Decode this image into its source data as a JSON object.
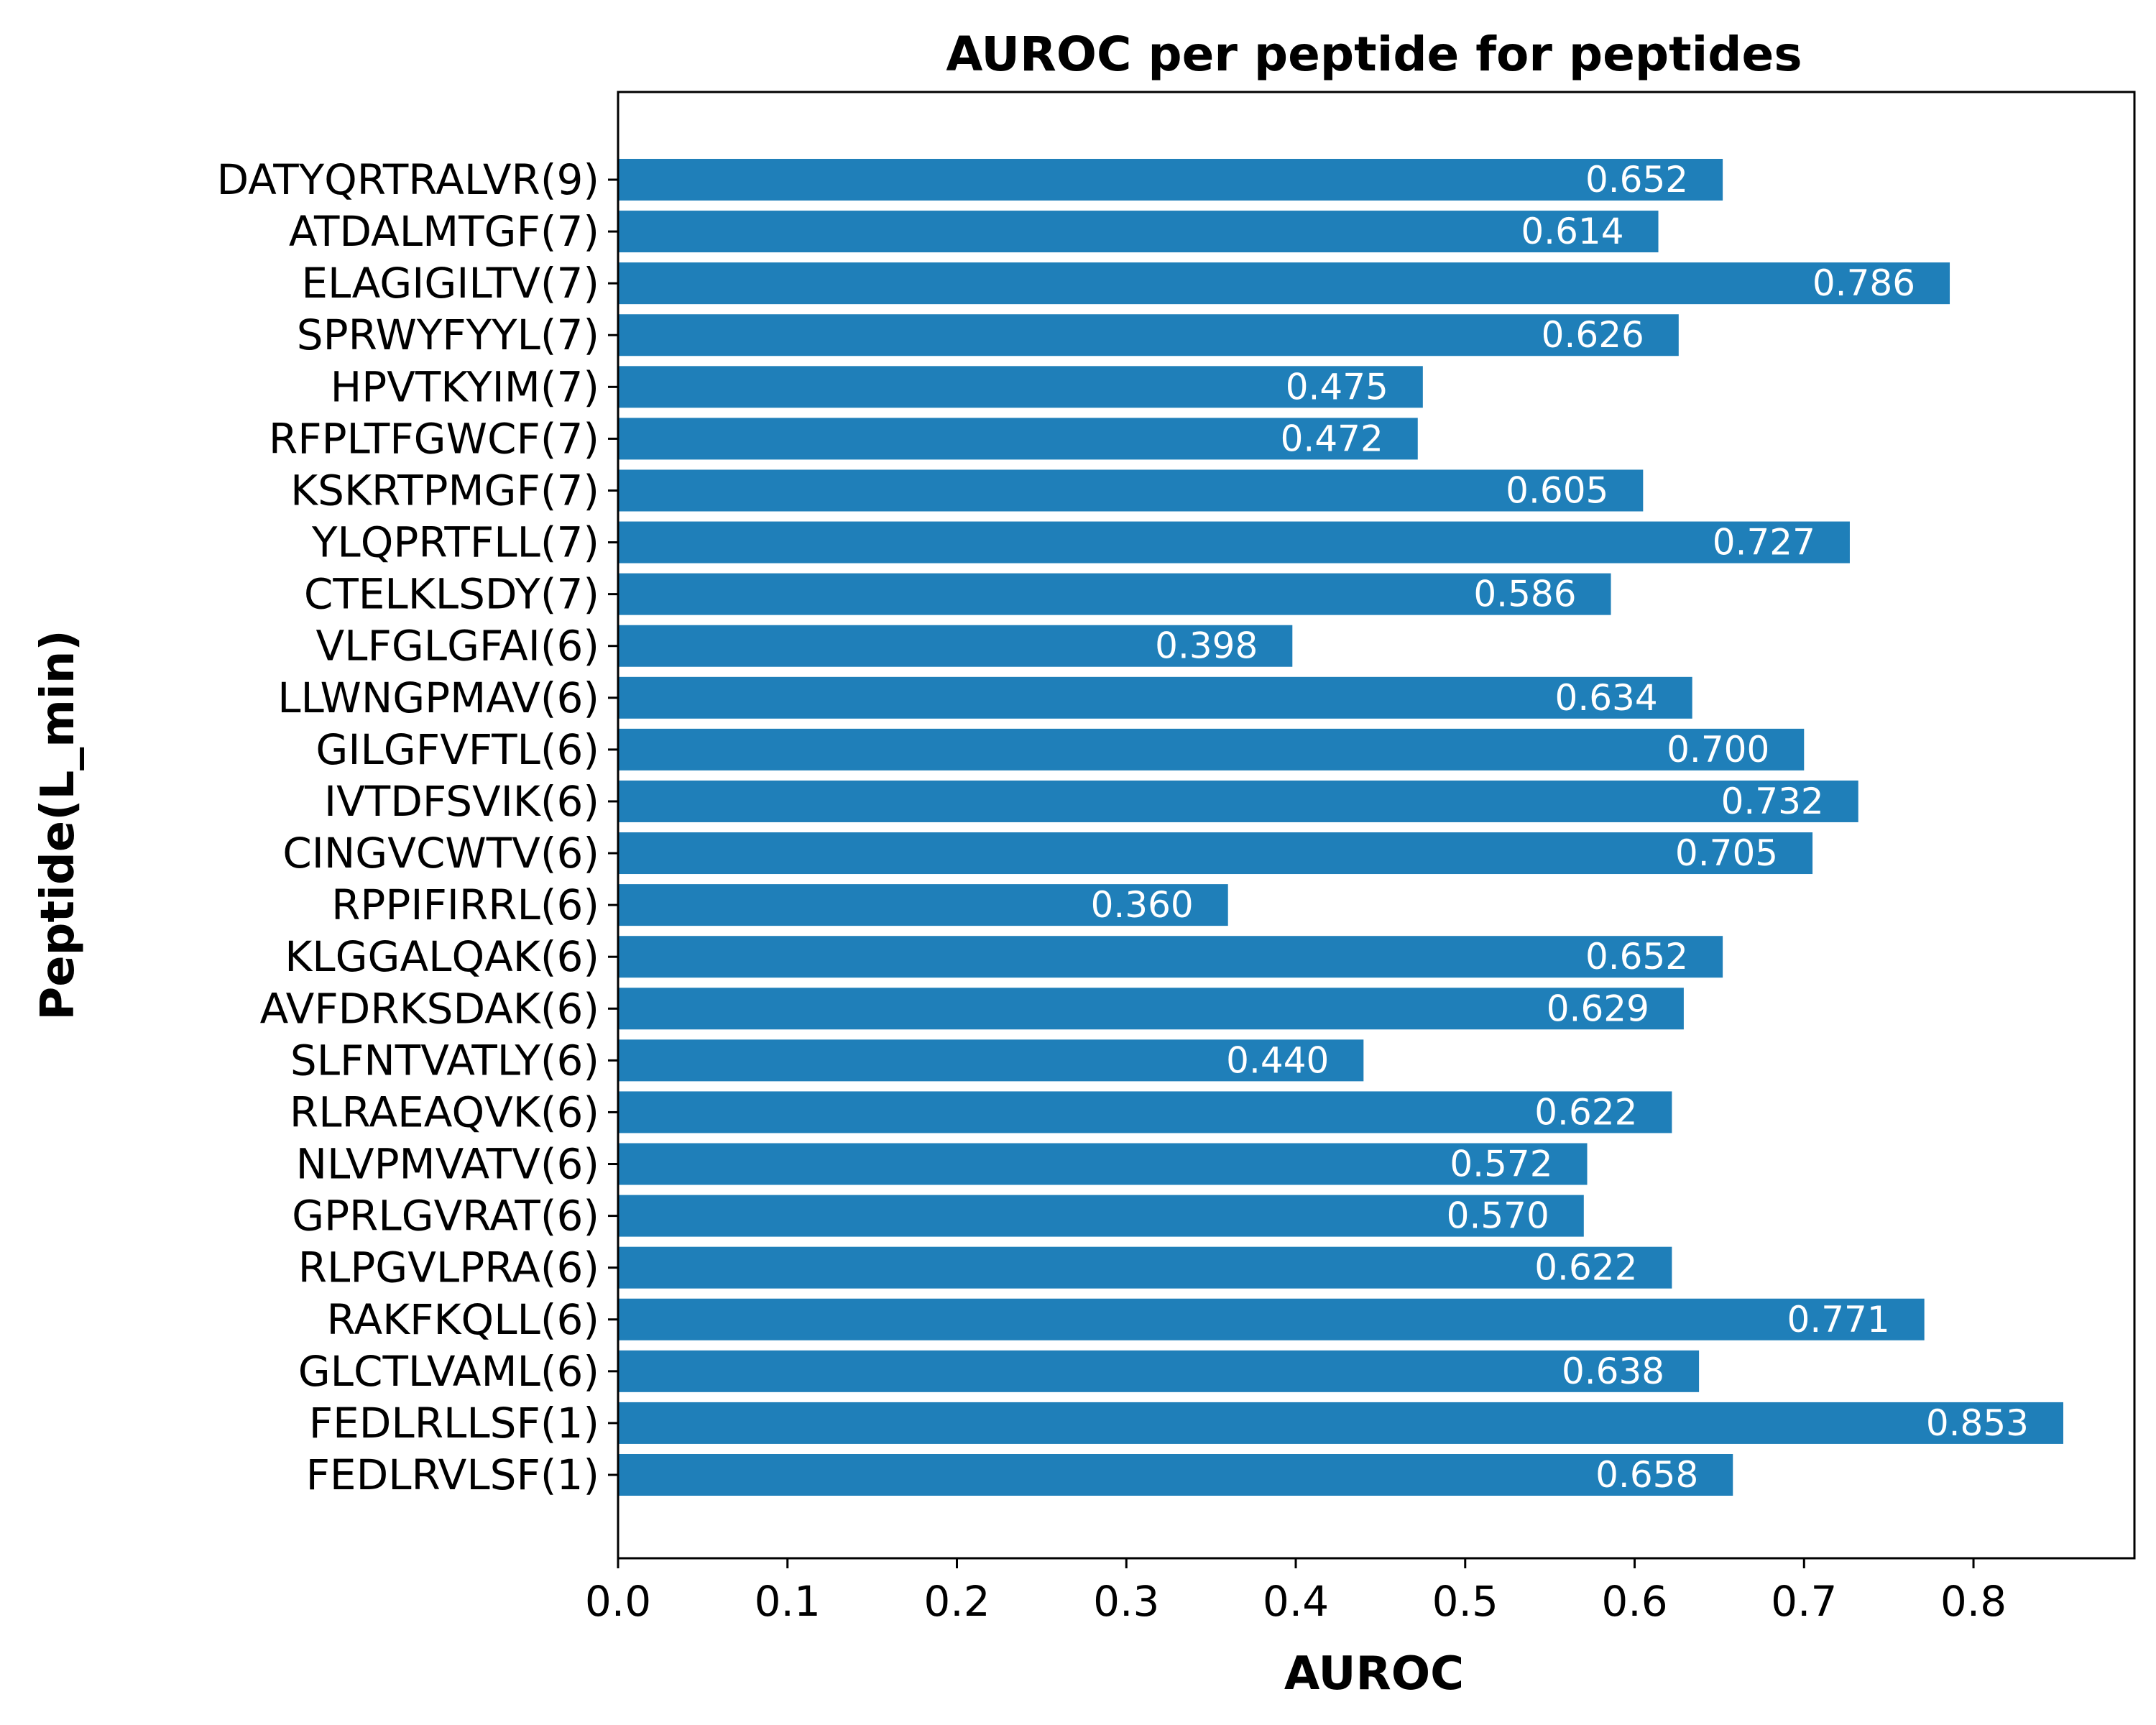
{
  "chart_data": {
    "type": "bar",
    "orientation": "horizontal",
    "title": "AUROC per peptide for peptides",
    "xlabel": "AUROC",
    "ylabel": "Peptide(L_min)",
    "xlim": [
      0,
      0.895
    ],
    "xticks": [
      "0.0",
      "0.1",
      "0.2",
      "0.3",
      "0.4",
      "0.5",
      "0.6",
      "0.7",
      "0.8"
    ],
    "grid": false,
    "bar_color": "#1f7fb9",
    "value_label_color": "#ffffff",
    "categories": [
      "DATYQRTRALVR(9)",
      "ATDALMTGF(7)",
      "ELAGIGILTV(7)",
      "SPRWYFYYL(7)",
      "HPVTKYIM(7)",
      "RFPLTFGWCF(7)",
      "KSKRTPMGF(7)",
      "YLQPRTFLL(7)",
      "CTELKLSDY(7)",
      "VLFGLGFAI(6)",
      "LLWNGPMAV(6)",
      "GILGFVFTL(6)",
      "IVTDFSVIK(6)",
      "CINGVCWTV(6)",
      "RPPIFIRRL(6)",
      "KLGGALQAK(6)",
      "AVFDRKSDAK(6)",
      "SLFNTVATLY(6)",
      "RLRAEAQVK(6)",
      "NLVPMVATV(6)",
      "GPRLGVRAT(6)",
      "RLPGVLPRA(6)",
      "RAKFKQLL(6)",
      "GLCTLVAML(6)",
      "FEDLRLLSF(1)",
      "FEDLRVLSF(1)"
    ],
    "values": [
      0.652,
      0.614,
      0.786,
      0.626,
      0.475,
      0.472,
      0.605,
      0.727,
      0.586,
      0.398,
      0.634,
      0.7,
      0.732,
      0.705,
      0.36,
      0.652,
      0.629,
      0.44,
      0.622,
      0.572,
      0.57,
      0.622,
      0.771,
      0.638,
      0.853,
      0.658
    ],
    "value_labels": [
      "0.652",
      "0.614",
      "0.786",
      "0.626",
      "0.475",
      "0.472",
      "0.605",
      "0.727",
      "0.586",
      "0.398",
      "0.634",
      "0.700",
      "0.732",
      "0.705",
      "0.360",
      "0.652",
      "0.629",
      "0.440",
      "0.622",
      "0.572",
      "0.570",
      "0.622",
      "0.771",
      "0.638",
      "0.853",
      "0.658"
    ]
  }
}
